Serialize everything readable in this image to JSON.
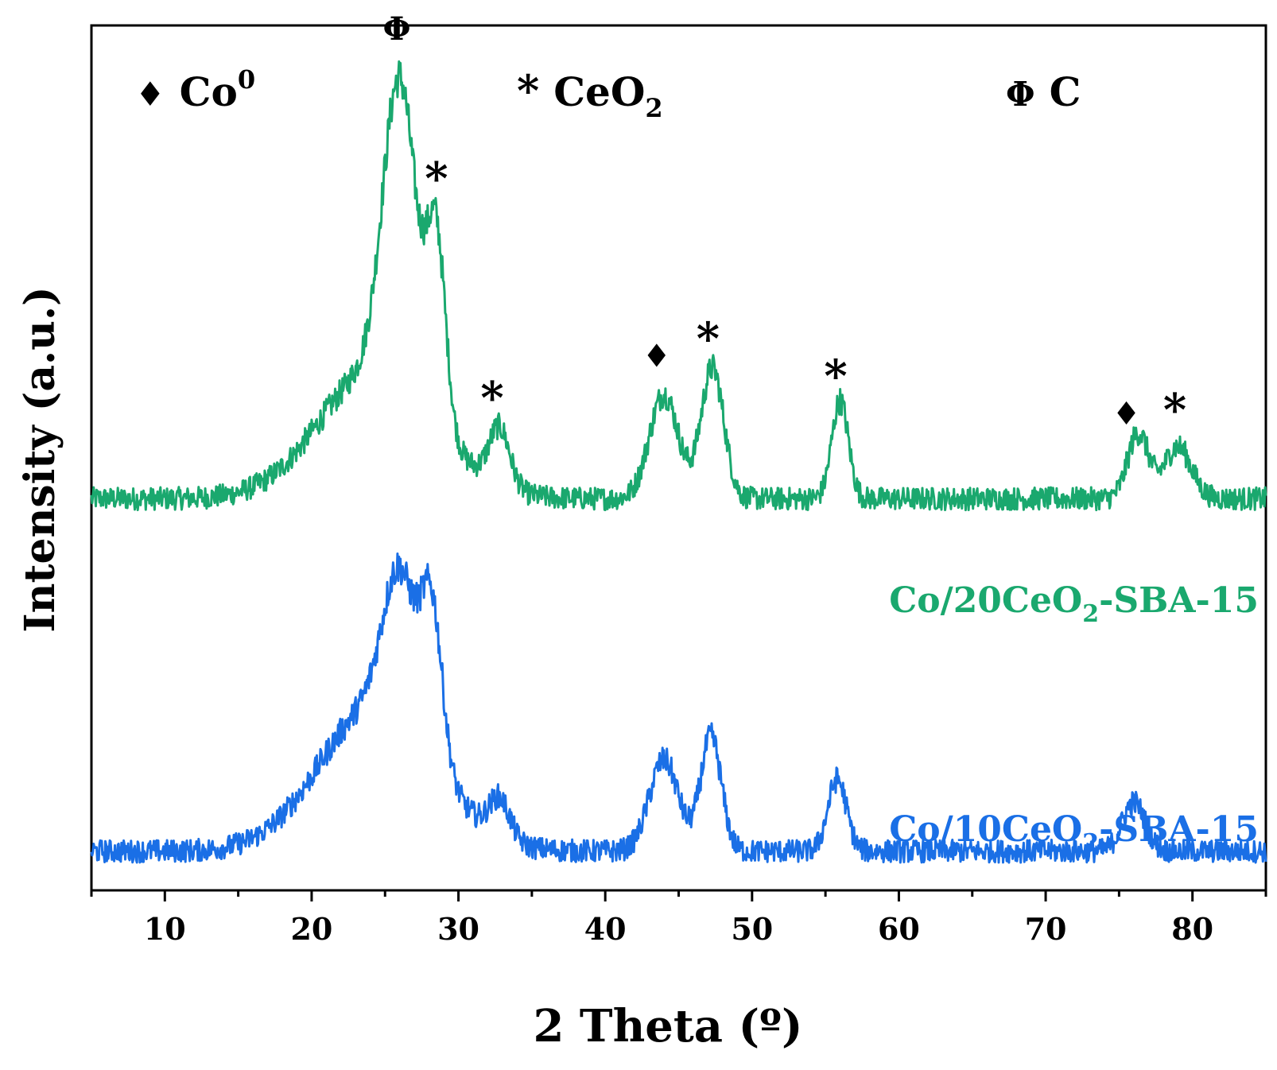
{
  "chart_data": {
    "type": "line",
    "xlabel": "2 Theta (º)",
    "ylabel": "Intensity (a.u.)",
    "xlim": [
      5,
      85
    ],
    "xticks": [
      10,
      20,
      30,
      40,
      50,
      60,
      70,
      80
    ],
    "y_ticks_shown": false,
    "grid": false,
    "legend": {
      "placement": "top",
      "items": [
        {
          "symbol": "♦",
          "base": "Co",
          "sup": "0",
          "sub": ""
        },
        {
          "symbol": "*",
          "base": "CeO",
          "sup": "",
          "sub": "2"
        },
        {
          "symbol": "Φ",
          "base": "C",
          "sup": "",
          "sub": ""
        }
      ]
    },
    "series": [
      {
        "name_parts": {
          "pre": "Co/20CeO",
          "sub": "2",
          "post": "-SBA-15"
        },
        "color": "#1aa86e",
        "baseline": 1.2,
        "peaks": [
          {
            "x": 26.0,
            "height": 0.92,
            "width": 1.6
          },
          {
            "x": 28.5,
            "height": 0.55,
            "width": 0.9
          },
          {
            "x": 32.8,
            "height": 0.18,
            "width": 1.0
          },
          {
            "x": 44.0,
            "height": 0.32,
            "width": 1.4
          },
          {
            "x": 47.3,
            "height": 0.4,
            "width": 1.1
          },
          {
            "x": 56.0,
            "height": 0.3,
            "width": 0.8
          },
          {
            "x": 76.3,
            "height": 0.2,
            "width": 1.0
          },
          {
            "x": 79.0,
            "height": 0.16,
            "width": 1.3
          }
        ],
        "hump": {
          "x": 24.5,
          "height": 0.4,
          "width": 5.5
        },
        "noise": 0.035
      },
      {
        "name_parts": {
          "pre": "Co/10CeO",
          "sub": "2",
          "post": "-SBA-15"
        },
        "color": "#1a6fe6",
        "baseline": 0.12,
        "peaks": [
          {
            "x": 26.0,
            "height": 0.45,
            "width": 1.6
          },
          {
            "x": 28.2,
            "height": 0.45,
            "width": 1.0
          },
          {
            "x": 32.8,
            "height": 0.12,
            "width": 1.0
          },
          {
            "x": 44.0,
            "height": 0.28,
            "width": 1.4
          },
          {
            "x": 47.2,
            "height": 0.35,
            "width": 1.0
          },
          {
            "x": 55.8,
            "height": 0.22,
            "width": 0.9
          },
          {
            "x": 76.0,
            "height": 0.15,
            "width": 1.1
          }
        ],
        "hump": {
          "x": 24.5,
          "height": 0.45,
          "width": 5.5
        },
        "noise": 0.035
      }
    ],
    "annotations": [
      {
        "symbol": "Φ",
        "x": 25.8,
        "series": 0
      },
      {
        "symbol": "*",
        "x": 28.5,
        "series": 0
      },
      {
        "symbol": "*",
        "x": 32.3,
        "series": 0
      },
      {
        "symbol": "♦",
        "x": 43.5,
        "series": 0
      },
      {
        "symbol": "*",
        "x": 47.0,
        "series": 0
      },
      {
        "symbol": "*",
        "x": 55.7,
        "series": 0
      },
      {
        "symbol": "♦",
        "x": 75.5,
        "series": 0
      },
      {
        "symbol": "*",
        "x": 78.8,
        "series": 0
      }
    ]
  }
}
